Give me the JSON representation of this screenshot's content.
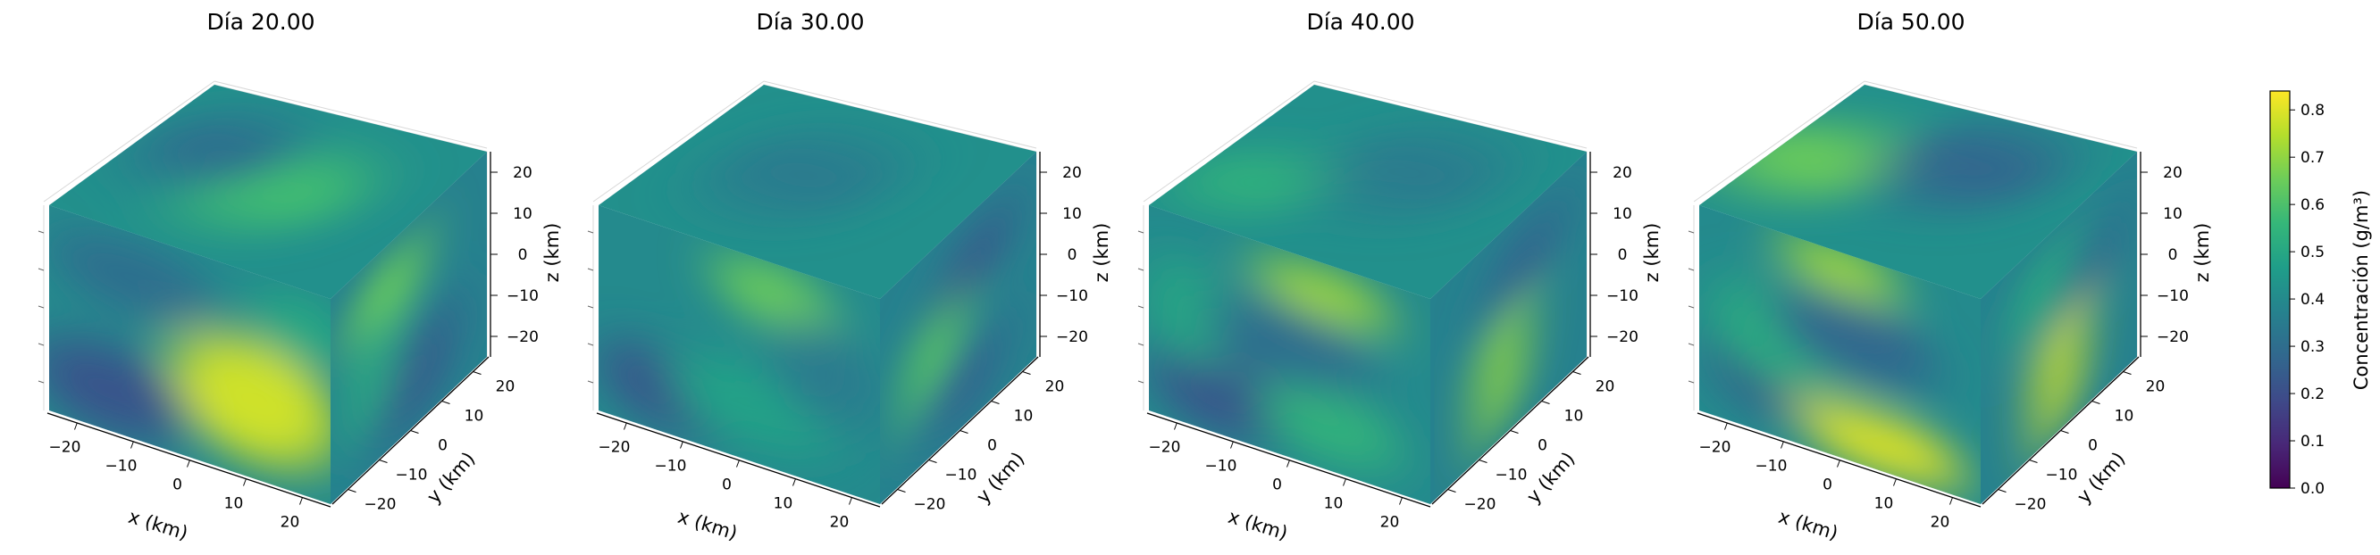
{
  "chart_data": {
    "type": "volume-3d",
    "panels": [
      {
        "title": "Día 20.00",
        "xlabel": "x (km)",
        "ylabel": "y (km)",
        "zlabel": "z (km)",
        "xlim": [
          -25,
          25
        ],
        "ylim": [
          -25,
          25
        ],
        "zlim": [
          -25,
          25
        ],
        "xticks": [
          "−20",
          "−10",
          "0",
          "10",
          "20"
        ],
        "yticks": [
          "−20",
          "−10",
          "0",
          "10",
          "20"
        ],
        "zticks": [
          "20",
          "10",
          "0",
          "−10",
          "−20"
        ],
        "blobs": {
          "front": [
            [
              0.73,
              0.62,
              0.3,
              0.3,
              0.38
            ],
            [
              0.22,
              0.8,
              0.28,
              0.22,
              -0.18
            ],
            [
              0.3,
              0.22,
              0.3,
              0.18,
              -0.1
            ],
            [
              0.9,
              0.2,
              0.18,
              0.18,
              0.1
            ]
          ],
          "top": [
            [
              0.55,
              0.55,
              0.3,
              0.3,
              0.18
            ],
            [
              0.25,
              0.4,
              0.25,
              0.25,
              -0.1
            ]
          ],
          "right": [
            [
              0.35,
              0.25,
              0.25,
              0.2,
              0.25
            ],
            [
              0.55,
              0.75,
              0.25,
              0.25,
              -0.15
            ],
            [
              0.25,
              0.55,
              0.15,
              0.3,
              0.12
            ]
          ]
        }
      },
      {
        "title": "Día 30.00",
        "xlabel": "x (km)",
        "ylabel": "y (km)",
        "zlabel": "z (km)",
        "xlim": [
          -25,
          25
        ],
        "ylim": [
          -25,
          25
        ],
        "zlim": [
          -25,
          25
        ],
        "xticks": [
          "−20",
          "−10",
          "0",
          "10",
          "20"
        ],
        "yticks": [
          "−20",
          "−10",
          "0",
          "10",
          "20"
        ],
        "zticks": [
          "20",
          "10",
          "0",
          "−10",
          "−20"
        ],
        "blobs": {
          "front": [
            [
              0.62,
              0.15,
              0.22,
              0.15,
              0.25
            ],
            [
              0.25,
              0.78,
              0.25,
              0.2,
              -0.18
            ],
            [
              0.55,
              0.72,
              0.3,
              0.2,
              0.08
            ],
            [
              0.8,
              0.45,
              0.2,
              0.25,
              -0.05
            ]
          ],
          "top": [
            [
              0.45,
              0.5,
              0.3,
              0.3,
              -0.05
            ]
          ],
          "right": [
            [
              0.35,
              0.55,
              0.18,
              0.3,
              0.22
            ],
            [
              0.6,
              0.25,
              0.25,
              0.2,
              -0.15
            ],
            [
              0.55,
              0.8,
              0.25,
              0.2,
              -0.12
            ]
          ]
        }
      },
      {
        "title": "Día 40.00",
        "xlabel": "x (km)",
        "ylabel": "y (km)",
        "zlabel": "z (km)",
        "xlim": [
          -25,
          25
        ],
        "ylim": [
          -25,
          25
        ],
        "zlim": [
          -25,
          25
        ],
        "xticks": [
          "−20",
          "−10",
          "0",
          "10",
          "20"
        ],
        "yticks": [
          "−20",
          "−10",
          "0",
          "10",
          "20"
        ],
        "zticks": [
          "20",
          "10",
          "0",
          "−10",
          "−20"
        ],
        "blobs": {
          "front": [
            [
              0.62,
              0.15,
              0.25,
              0.12,
              0.32
            ],
            [
              0.25,
              0.8,
              0.25,
              0.2,
              -0.18
            ],
            [
              0.65,
              0.78,
              0.25,
              0.18,
              0.14
            ],
            [
              0.15,
              0.45,
              0.15,
              0.25,
              0.1
            ],
            [
              0.5,
              0.45,
              0.3,
              0.2,
              -0.1
            ]
          ],
          "top": [
            [
              0.2,
              0.7,
              0.25,
              0.2,
              0.15
            ],
            [
              0.6,
              0.4,
              0.3,
              0.3,
              -0.05
            ]
          ],
          "right": [
            [
              0.45,
              0.65,
              0.15,
              0.35,
              0.3
            ],
            [
              0.6,
              0.25,
              0.25,
              0.2,
              -0.12
            ]
          ]
        }
      },
      {
        "title": "Día 50.00",
        "xlabel": "x (km)",
        "ylabel": "y (km)",
        "zlabel": "z (km)",
        "xlim": [
          -25,
          25
        ],
        "ylim": [
          -25,
          25
        ],
        "zlim": [
          -25,
          25
        ],
        "xticks": [
          "−20",
          "−10",
          "0",
          "10",
          "20"
        ],
        "yticks": [
          "−20",
          "−10",
          "0",
          "10",
          "20"
        ],
        "zticks": [
          "20",
          "10",
          "0",
          "−10",
          "−20"
        ],
        "blobs": {
          "front": [
            [
              0.65,
              0.87,
              0.3,
              0.15,
              0.4
            ],
            [
              0.5,
              0.08,
              0.22,
              0.12,
              0.32
            ],
            [
              0.22,
              0.7,
              0.18,
              0.2,
              -0.18
            ],
            [
              0.3,
              0.5,
              0.25,
              0.25,
              0.12
            ],
            [
              0.55,
              0.4,
              0.3,
              0.2,
              -0.12
            ]
          ],
          "top": [
            [
              0.15,
              0.55,
              0.3,
              0.25,
              0.25
            ],
            [
              0.6,
              0.35,
              0.3,
              0.3,
              -0.12
            ]
          ],
          "right": [
            [
              0.5,
              0.65,
              0.15,
              0.4,
              0.38
            ],
            [
              0.4,
              0.25,
              0.2,
              0.2,
              0.12
            ],
            [
              0.7,
              0.35,
              0.2,
              0.2,
              -0.1
            ]
          ]
        }
      }
    ],
    "colorbar": {
      "label": "Concentración (g/m³)",
      "colormap": "viridis",
      "range": [
        0.0,
        0.84
      ],
      "ticks": [
        "0.0",
        "0.1",
        "0.2",
        "0.3",
        "0.4",
        "0.5",
        "0.6",
        "0.7",
        "0.8"
      ]
    }
  }
}
